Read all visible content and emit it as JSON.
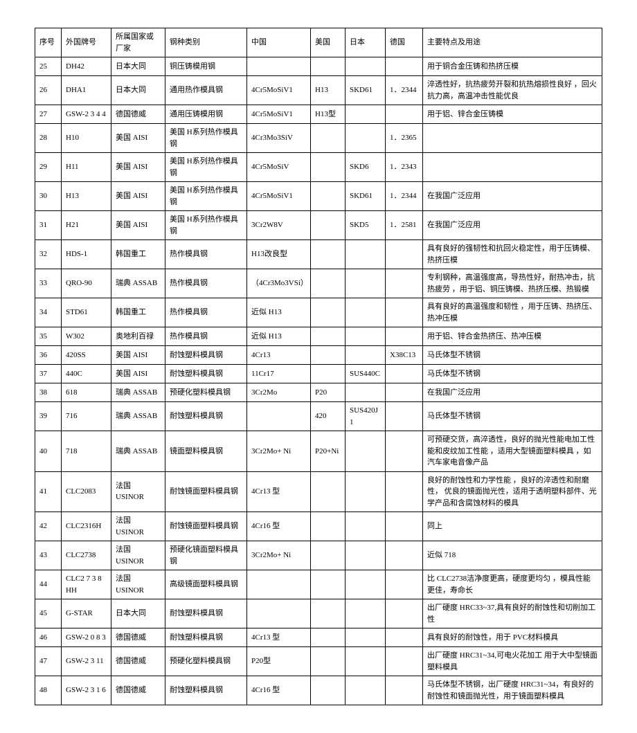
{
  "table": {
    "columns": [
      "序号",
      "外国牌号",
      "所属国家或厂家",
      "钢种类别",
      "中国",
      "美国",
      "日本",
      "德国",
      "主要特点及用途"
    ],
    "rows": [
      [
        "25",
        "DH42",
        "日本大同",
        "铜压铸模用钢",
        "",
        "",
        "",
        "",
        "用于铜合金压铸和热挤压模"
      ],
      [
        "26",
        "DHA1",
        "日本大同",
        "通用热作模具钢",
        "4Cr5MoSiV1",
        "H13",
        "SKD61",
        "1．2344",
        "淬透性好，抗热疲劳开裂和抗热熔损性良好 ，回火抗力高，高温冲击性能优良"
      ],
      [
        "27",
        "GSW-2 3 4 4",
        "德国德威",
        "通用压铸模用钢",
        "4Cr5MoSiV1",
        "H13型",
        "",
        "",
        "用于铝、锌合金压铸模"
      ],
      [
        "28",
        "H10",
        "美国 AISI",
        "美国 H系列热作模具钢",
        "4Cr3Mo3SiV",
        "",
        "",
        "1．2365",
        ""
      ],
      [
        "29",
        "H11",
        "美国 AISI",
        "美国 H系列热作模具钢",
        "4Cr5MoSiV",
        "",
        "SKD6",
        "1．2343",
        ""
      ],
      [
        "30",
        "H13",
        "美国 AISI",
        "美国 H系列热作模具钢",
        "4Cr5MoSiV1",
        "",
        "SKD61",
        "1．2344",
        "在我国广泛应用"
      ],
      [
        "31",
        "H21",
        "美国 AISI",
        "美国 H系列热作模具钢",
        "3Cr2W8V",
        "",
        "SKD5",
        "1．2581",
        "在我国广泛应用"
      ],
      [
        "32",
        "HDS-1",
        "韩国重工",
        "热作模具钢",
        "H13改良型",
        "",
        "",
        "",
        "具有良好的强韧性和抗回火稳定性，用于压铸模、热挤压模"
      ],
      [
        "33",
        "QRO-90",
        "瑞典 ASSAB",
        "热作模具钢",
        "（4Cr3Mo3VSi）",
        "",
        "",
        "",
        "专利钢种，高温强度高，导热性好，耐热冲击，抗热疲劳 ，用于铝、铜压铸模、热挤压模、热锻模"
      ],
      [
        "34",
        "STD61",
        "韩国重工",
        "热作模具钢",
        "近似 H13",
        "",
        "",
        "",
        "具有良好的高温强度和韧性 ，用于压铸、热挤压、热冲压模"
      ],
      [
        "35",
        "W302",
        "奥地利百禄",
        "热作模具钢",
        "近似 H13",
        "",
        "",
        "",
        "用于铝、锌合金热挤压、热冲压模"
      ],
      [
        "36",
        "420SS",
        "美国 AISI",
        "耐蚀塑料模具钢",
        "4Cr13",
        "",
        "",
        "X38C13",
        "马氏体型不锈钢"
      ],
      [
        "37",
        "440C",
        "美国 AISI",
        "耐蚀塑料模具钢",
        "11Cr17",
        "",
        "SUS440C",
        "",
        "马氏体型不锈钢"
      ],
      [
        "38",
        "618",
        "瑞典 ASSAB",
        "预硬化塑料模具钢",
        "3Cr2Mo",
        "P20",
        "",
        "",
        "在我国广泛应用"
      ],
      [
        "39",
        "716",
        "瑞典 ASSAB",
        "耐蚀塑料模具钢",
        "",
        "420",
        "SUS420J1",
        "",
        "马氏体型不锈钢"
      ],
      [
        "40",
        "718",
        "瑞典 ASSAB",
        "镜面塑料模具钢",
        "3Cr2Mo+ Ni",
        "P20+Ni",
        "",
        "",
        "可预硬交货，高淬透性，良好的抛光性能电加工性能和皮纹加工性能 ，适用大型镜面塑料模具 ，如汽车家电音像产品"
      ],
      [
        "41",
        "CLC2083",
        "法国 USINOR",
        "耐蚀镜面塑料模具钢",
        "4Cr13 型",
        "",
        "",
        "",
        "良好的耐蚀性和力学性能 ，良好的淬透性和耐磨性， 优良的镜面抛光性，适用于透明塑料部件、光学产品和含腐蚀材料的模具"
      ],
      [
        "42",
        "CLC2316H",
        "法国 USINOR",
        "耐蚀镜面塑料模具钢",
        "4Cr16 型",
        "",
        "",
        "",
        "同上"
      ],
      [
        "43",
        "CLC2738",
        "法国 USINOR",
        "预硬化镜面塑料模具钢",
        "3Cr2Mo+ Ni",
        "",
        "",
        "",
        "近似 718"
      ],
      [
        "44",
        "CLC2 7 3 8 HH",
        "法国 USINOR",
        "高级镜面塑料模具钢",
        "",
        "",
        "",
        "",
        "比 CLC2738洁净度更高，硬度更均匀 ，模具性能更佳，寿命长"
      ],
      [
        "45",
        "G-STAR",
        "日本大同",
        "耐蚀塑料模具钢",
        "",
        "",
        "",
        "",
        "出厂硬度 HRC33~37,具有良好的耐蚀性和切削加工性"
      ],
      [
        "46",
        "GSW-2 0 8 3",
        "德国德威",
        "耐蚀塑料模具钢",
        "4Cr13 型",
        "",
        "",
        "",
        "具有良好的耐蚀性，用于 PVC材料模具"
      ],
      [
        "47",
        "GSW-2 3 11",
        "德国德威",
        "预硬化塑料模具钢",
        "P20型",
        "",
        "",
        "",
        "出厂硬度 HRC31~34,可电火花加工 用于大中型镜面塑料模具"
      ],
      [
        "48",
        "GSW-2 3 1 6",
        "德国德威",
        "耐蚀塑料模具钢",
        "4Cr16 型",
        "",
        "",
        "",
        "马氏体型不锈钢，出厂硬度 HRC31~34，有良好的耐蚀性和镜面抛光性，用于镜面塑料模具"
      ]
    ]
  }
}
